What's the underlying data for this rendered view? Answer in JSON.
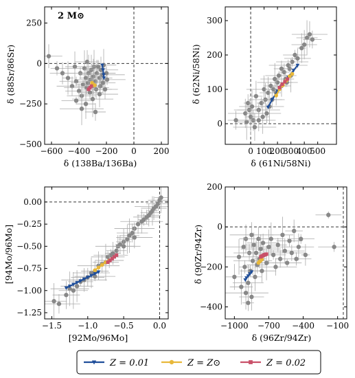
{
  "figure_label": "2 M⊙",
  "colors": {
    "obs": "#888888",
    "z001": "#1f4e9a",
    "zsun": "#e8b83a",
    "z002": "#c95069"
  },
  "legend": [
    {
      "label": "Z = 0.01",
      "color": "#1f4e9a",
      "marker": "triangle-down"
    },
    {
      "label": "Z = Z⊙",
      "color": "#e8b83a",
      "marker": "circle"
    },
    {
      "label": "Z = 0.02",
      "color": "#c95069",
      "marker": "square"
    }
  ],
  "chart_data": [
    {
      "type": "scatter",
      "xlabel": "δ (138Ba/136Ba)",
      "ylabel": "δ (88Sr/86Sr)",
      "xlim": [
        -650,
        250
      ],
      "ylim": [
        -500,
        350
      ],
      "xticks": [
        -600,
        -400,
        -200,
        0,
        200
      ],
      "xtick_labels": [
        "−600",
        "−400",
        "−200",
        "0",
        "200"
      ],
      "yticks": [
        -500,
        -250,
        0,
        250
      ],
      "ytick_labels": [
        "−500",
        "−250",
        "0",
        "250"
      ],
      "ref_x": 0,
      "ref_y": 0,
      "observations": [
        [
          -620,
          45
        ],
        [
          -560,
          -30
        ],
        [
          -520,
          -60
        ],
        [
          -480,
          -90
        ],
        [
          -450,
          -140
        ],
        [
          -430,
          -20
        ],
        [
          -420,
          -110
        ],
        [
          -400,
          -170
        ],
        [
          -390,
          -60
        ],
        [
          -380,
          -200
        ],
        [
          -370,
          -130
        ],
        [
          -360,
          -30
        ],
        [
          -350,
          -90
        ],
        [
          -345,
          -150
        ],
        [
          -340,
          10
        ],
        [
          -335,
          -120
        ],
        [
          -330,
          -60
        ],
        [
          -320,
          -180
        ],
        [
          -315,
          -100
        ],
        [
          -310,
          -40
        ],
        [
          -300,
          -140
        ],
        [
          -295,
          -80
        ],
        [
          -290,
          -20
        ],
        [
          -280,
          -110
        ],
        [
          -275,
          -160
        ],
        [
          -270,
          -60
        ],
        [
          -260,
          -20
        ],
        [
          -250,
          -90
        ],
        [
          -245,
          -140
        ],
        [
          -240,
          -40
        ],
        [
          -230,
          -70
        ],
        [
          -225,
          -120
        ],
        [
          -220,
          -10
        ],
        [
          -210,
          -160
        ],
        [
          -200,
          -60
        ],
        [
          -195,
          -100
        ],
        [
          -350,
          -250
        ],
        [
          -300,
          -220
        ],
        [
          -380,
          -280
        ],
        [
          -250,
          -190
        ],
        [
          -420,
          -230
        ],
        [
          -280,
          -300
        ]
      ],
      "series": [
        {
          "name": "Z = 0.01",
          "x": [
            -230,
            -225,
            -220,
            -218
          ],
          "y": [
            -10,
            -40,
            -70,
            -90
          ]
        },
        {
          "name": "Z = Z⊙",
          "x": [
            -305,
            -295,
            -285
          ],
          "y": [
            -120,
            -130,
            -135
          ]
        },
        {
          "name": "Z = 0.02",
          "x": [
            -330,
            -320,
            -310
          ],
          "y": [
            -160,
            -150,
            -140
          ]
        }
      ]
    },
    {
      "type": "scatter",
      "xlabel": "δ (61Ni/58Ni)",
      "ylabel": "δ (62Ni/58Ni)",
      "xlim": [
        -190,
        640
      ],
      "ylim": [
        -60,
        340
      ],
      "xticks": [
        0,
        100,
        200,
        300,
        400,
        500
      ],
      "xtick_labels": [
        "0",
        "100",
        "200",
        "300",
        "400",
        "500"
      ],
      "yticks": [
        0,
        100,
        200,
        300
      ],
      "ytick_labels": [
        "0",
        "100",
        "200",
        "300"
      ],
      "ref_x": 0,
      "ref_y": 0,
      "observations": [
        [
          -110,
          10
        ],
        [
          -40,
          30
        ],
        [
          -30,
          5
        ],
        [
          -20,
          60
        ],
        [
          -10,
          40
        ],
        [
          0,
          20
        ],
        [
          10,
          50
        ],
        [
          20,
          10
        ],
        [
          40,
          80
        ],
        [
          60,
          40
        ],
        [
          80,
          60
        ],
        [
          100,
          100
        ],
        [
          110,
          70
        ],
        [
          130,
          90
        ],
        [
          150,
          110
        ],
        [
          170,
          100
        ],
        [
          180,
          130
        ],
        [
          200,
          120
        ],
        [
          210,
          140
        ],
        [
          230,
          110
        ],
        [
          250,
          150
        ],
        [
          260,
          130
        ],
        [
          280,
          170
        ],
        [
          290,
          160
        ],
        [
          310,
          180
        ],
        [
          330,
          200
        ],
        [
          350,
          190
        ],
        [
          380,
          220
        ],
        [
          400,
          230
        ],
        [
          420,
          250
        ],
        [
          440,
          260
        ],
        [
          460,
          245
        ],
        [
          300,
          140
        ],
        [
          270,
          120
        ],
        [
          230,
          160
        ],
        [
          190,
          90
        ],
        [
          160,
          70
        ],
        [
          140,
          50
        ],
        [
          120,
          30
        ],
        [
          90,
          20
        ],
        [
          60,
          10
        ],
        [
          30,
          -10
        ]
      ],
      "series": [
        {
          "name": "Z = 0.01",
          "x": [
            130,
            160,
            200,
            240,
            280,
            320,
            350
          ],
          "y": [
            48,
            70,
            95,
            115,
            135,
            155,
            170
          ]
        },
        {
          "name": "Z = Z⊙",
          "x": [
            190,
            215,
            240,
            265,
            290,
            310
          ],
          "y": [
            82,
            100,
            112,
            125,
            138,
            145
          ]
        },
        {
          "name": "Z = 0.02",
          "x": [
            215,
            235,
            255,
            275
          ],
          "y": [
            105,
            115,
            122,
            130
          ]
        }
      ]
    },
    {
      "type": "scatter",
      "xlabel": "[92Mo/96Mo]",
      "ylabel": "[94Mo/96Mo]",
      "xlim": [
        -1.6,
        0.12
      ],
      "ylim": [
        -1.32,
        0.17
      ],
      "xticks": [
        -1.5,
        -1.0,
        -0.5,
        0.0
      ],
      "xtick_labels": [
        "−1.5",
        "−1.0",
        "−0.5",
        "0.0"
      ],
      "yticks": [
        -1.25,
        -1.0,
        -0.75,
        -0.5,
        -0.25,
        0.0
      ],
      "ytick_labels": [
        "−1.25",
        "−1.00",
        "−0.75",
        "−0.50",
        "−0.25",
        "0.00"
      ],
      "ref_x": 0,
      "ref_y": 0,
      "observations": [
        [
          -1.47,
          -1.12
        ],
        [
          -1.4,
          -1.15
        ],
        [
          -1.3,
          -1.05
        ],
        [
          -1.25,
          -0.98
        ],
        [
          -1.2,
          -1.0
        ],
        [
          -1.15,
          -0.95
        ],
        [
          -1.1,
          -0.9
        ],
        [
          -1.05,
          -0.88
        ],
        [
          -1.0,
          -0.85
        ],
        [
          -0.95,
          -0.8
        ],
        [
          -0.9,
          -0.78
        ],
        [
          -0.85,
          -0.72
        ],
        [
          -0.8,
          -0.7
        ],
        [
          -0.75,
          -0.68
        ],
        [
          -0.72,
          -0.62
        ],
        [
          -0.68,
          -0.6
        ],
        [
          -0.65,
          -0.58
        ],
        [
          -0.6,
          -0.55
        ],
        [
          -0.58,
          -0.5
        ],
        [
          -0.55,
          -0.48
        ],
        [
          -0.5,
          -0.45
        ],
        [
          -0.45,
          -0.42
        ],
        [
          -0.42,
          -0.38
        ],
        [
          -0.38,
          -0.35
        ],
        [
          -0.35,
          -0.3
        ],
        [
          -0.3,
          -0.25
        ],
        [
          -0.25,
          -0.22
        ],
        [
          -0.22,
          -0.2
        ],
        [
          -0.18,
          -0.17
        ],
        [
          -0.15,
          -0.15
        ],
        [
          -0.12,
          -0.12
        ],
        [
          -0.1,
          -0.1
        ],
        [
          -0.08,
          -0.07
        ],
        [
          -0.05,
          -0.05
        ],
        [
          -0.02,
          -0.02
        ],
        [
          0.0,
          0.02
        ],
        [
          0.02,
          0.05
        ],
        [
          -0.9,
          -0.84
        ],
        [
          -0.7,
          -0.66
        ],
        [
          -0.5,
          -0.5
        ],
        [
          -0.35,
          -0.4
        ]
      ],
      "series": [
        {
          "name": "Z = 0.01",
          "x": [
            -1.3,
            -1.25,
            -1.2,
            -1.15,
            -1.1,
            -1.05,
            -1.0,
            -0.95,
            -0.9,
            -0.85
          ],
          "y": [
            -0.97,
            -0.95,
            -0.93,
            -0.91,
            -0.89,
            -0.87,
            -0.85,
            -0.83,
            -0.81,
            -0.79
          ]
        },
        {
          "name": "Z = Z⊙",
          "x": [
            -0.9,
            -0.85,
            -0.8,
            -0.75,
            -0.7
          ],
          "y": [
            -0.77,
            -0.74,
            -0.71,
            -0.68,
            -0.66
          ]
        },
        {
          "name": "Z = 0.02",
          "x": [
            -0.72,
            -0.69,
            -0.66,
            -0.63,
            -0.6
          ],
          "y": [
            -0.68,
            -0.66,
            -0.64,
            -0.62,
            -0.6
          ]
        }
      ]
    },
    {
      "type": "scatter",
      "xlabel": "δ (96Zr/94Zr)",
      "ylabel": "δ (90Zr/94Zr)",
      "xlim": [
        -1080,
        -20
      ],
      "ylim": [
        -460,
        200
      ],
      "xticks": [
        -1000,
        -700,
        -400,
        -100
      ],
      "xtick_labels": [
        "−1000",
        "−700",
        "−400",
        "−100"
      ],
      "yticks": [
        -400,
        -200,
        0,
        200
      ],
      "ytick_labels": [
        "−400",
        "−200",
        "0",
        "200"
      ],
      "ref_x": -50,
      "ref_y": 0,
      "observations": [
        [
          -1000,
          -250
        ],
        [
          -960,
          -150
        ],
        [
          -940,
          -300
        ],
        [
          -920,
          -100
        ],
        [
          -910,
          -200
        ],
        [
          -900,
          -60
        ],
        [
          -880,
          -280
        ],
        [
          -870,
          -130
        ],
        [
          -860,
          -220
        ],
        [
          -850,
          -40
        ],
        [
          -840,
          -170
        ],
        [
          -830,
          -90
        ],
        [
          -820,
          -250
        ],
        [
          -810,
          -130
        ],
        [
          -800,
          -190
        ],
        [
          -790,
          -60
        ],
        [
          -780,
          -160
        ],
        [
          -770,
          -110
        ],
        [
          -760,
          -220
        ],
        [
          -750,
          -80
        ],
        [
          -740,
          -140
        ],
        [
          -720,
          -180
        ],
        [
          -700,
          -100
        ],
        [
          -680,
          -60
        ],
        [
          -660,
          -140
        ],
        [
          -640,
          -200
        ],
        [
          -620,
          -90
        ],
        [
          -600,
          -160
        ],
        [
          -580,
          -40
        ],
        [
          -560,
          -120
        ],
        [
          -540,
          -180
        ],
        [
          -520,
          -70
        ],
        [
          -500,
          -130
        ],
        [
          -480,
          -20
        ],
        [
          -460,
          -160
        ],
        [
          -440,
          -100
        ],
        [
          -420,
          -60
        ],
        [
          -380,
          -140
        ],
        [
          -180,
          60
        ],
        [
          -130,
          -100
        ],
        [
          -880,
          -380
        ],
        [
          -850,
          -350
        ],
        [
          -900,
          -330
        ]
      ],
      "series": [
        {
          "name": "Z = 0.01",
          "x": [
            -905,
            -895,
            -880,
            -865,
            -850
          ],
          "y": [
            -265,
            -255,
            -245,
            -235,
            -225
          ]
        },
        {
          "name": "Z = Z⊙",
          "x": [
            -790,
            -780,
            -770,
            -760
          ],
          "y": [
            -180,
            -173,
            -168,
            -162
          ]
        },
        {
          "name": "Z = 0.02",
          "x": [
            -770,
            -760,
            -750,
            -740,
            -730,
            -720
          ],
          "y": [
            -150,
            -146,
            -143,
            -140,
            -138,
            -136
          ]
        }
      ]
    }
  ]
}
